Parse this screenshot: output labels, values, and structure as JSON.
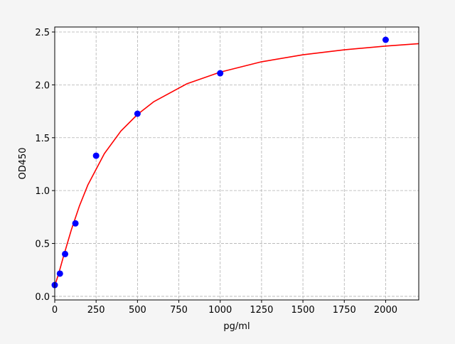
{
  "chart_data": {
    "type": "scatter",
    "title": "",
    "xlabel": "pg/ml",
    "ylabel": "OD450",
    "xlim": [
      0,
      2200
    ],
    "ylim": [
      -0.034,
      2.547
    ],
    "xticks": [
      0,
      250,
      500,
      750,
      1000,
      1250,
      1500,
      1750,
      2000
    ],
    "xtick_labels": [
      "0",
      "250",
      "500",
      "750",
      "1000",
      "1250",
      "1500",
      "1750",
      "2000"
    ],
    "yticks": [
      0,
      0.5,
      1,
      1.5,
      2,
      2.5
    ],
    "ytick_labels": [
      "0.0",
      "0.5",
      "1.0",
      "1.5",
      "2.0",
      "2.5"
    ],
    "grid": true,
    "colors": {
      "points": "#0000ff",
      "curve": "#ff0000",
      "grid": "#b0b0b0"
    },
    "series": [
      {
        "kind": "points",
        "x": [
          0,
          31.25,
          62.5,
          125,
          250,
          500,
          1000,
          2000
        ],
        "y": [
          0.107,
          0.215,
          0.4,
          0.69,
          1.33,
          1.727,
          2.11,
          2.426
        ]
      },
      {
        "kind": "fit-line",
        "x": [
          0,
          25,
          50,
          100,
          150,
          200,
          300,
          400,
          500,
          600,
          800,
          1000,
          1250,
          1500,
          1750,
          2000,
          2200
        ],
        "y": [
          0.1,
          0.221,
          0.361,
          0.628,
          0.858,
          1.052,
          1.35,
          1.564,
          1.72,
          1.842,
          2.011,
          2.12,
          2.218,
          2.284,
          2.331,
          2.367,
          2.39
        ]
      }
    ]
  }
}
